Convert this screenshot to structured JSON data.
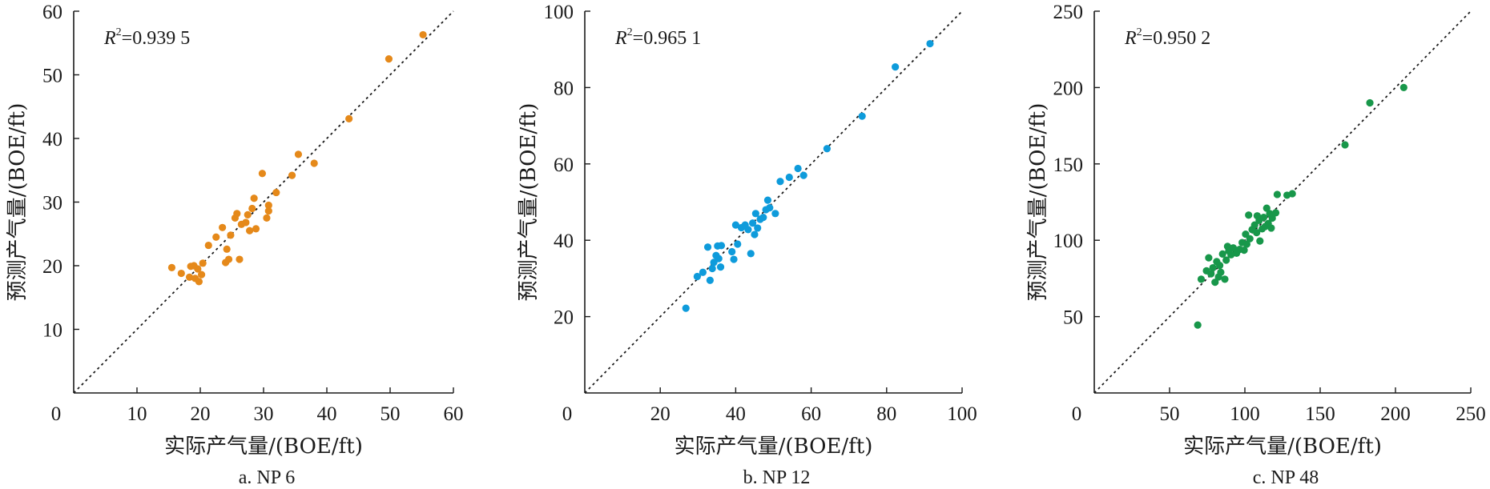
{
  "chart_data": [
    {
      "type": "scatter",
      "caption": "a. NP 6",
      "xlabel": "实际产气量/(BOE/ft)",
      "ylabel": "预测产气量/(BOE/ft)",
      "r2_label": "R",
      "r2_sup": "2",
      "r2_value": "=0.939 5",
      "xlim": [
        0,
        60
      ],
      "ylim": [
        0,
        60
      ],
      "xticks": [
        0,
        10,
        20,
        30,
        40,
        50,
        60
      ],
      "yticks": [
        10,
        20,
        30,
        40,
        50,
        60
      ],
      "origin_label": "0",
      "color": "#E5891A",
      "reference_line": "y=x",
      "points": [
        [
          15.5,
          19.7
        ],
        [
          17.0,
          18.8
        ],
        [
          18.3,
          18.2
        ],
        [
          18.5,
          19.9
        ],
        [
          19.2,
          18.0
        ],
        [
          19.6,
          19.5
        ],
        [
          19.8,
          17.5
        ],
        [
          20.2,
          18.6
        ],
        [
          20.4,
          20.4
        ],
        [
          19.0,
          20.0
        ],
        [
          21.3,
          23.2
        ],
        [
          22.5,
          24.5
        ],
        [
          23.5,
          26.0
        ],
        [
          24.0,
          20.5
        ],
        [
          24.2,
          22.6
        ],
        [
          24.5,
          21.0
        ],
        [
          24.8,
          24.8
        ],
        [
          25.5,
          27.5
        ],
        [
          25.8,
          28.2
        ],
        [
          26.2,
          21.0
        ],
        [
          26.5,
          26.5
        ],
        [
          27.2,
          26.8
        ],
        [
          27.5,
          28.0
        ],
        [
          27.8,
          25.5
        ],
        [
          28.2,
          29.0
        ],
        [
          28.5,
          30.6
        ],
        [
          28.8,
          25.8
        ],
        [
          29.8,
          34.5
        ],
        [
          30.5,
          27.5
        ],
        [
          30.8,
          29.5
        ],
        [
          30.8,
          28.6
        ],
        [
          32.0,
          31.5
        ],
        [
          34.5,
          34.2
        ],
        [
          35.5,
          37.5
        ],
        [
          38.0,
          36.1
        ],
        [
          43.5,
          43.1
        ],
        [
          49.8,
          52.5
        ],
        [
          55.2,
          56.3
        ]
      ]
    },
    {
      "type": "scatter",
      "caption": "b. NP 12",
      "xlabel": "实际产气量/(BOE/ft)",
      "ylabel": "预测产气量/(BOE/ft)",
      "r2_label": "R",
      "r2_sup": "2",
      "r2_value": "=0.965 1",
      "xlim": [
        0,
        100
      ],
      "ylim": [
        0,
        100
      ],
      "xticks": [
        20,
        40,
        60,
        80,
        100
      ],
      "yticks": [
        20,
        40,
        60,
        80,
        100
      ],
      "origin_label": "0",
      "color": "#0E9BDB",
      "reference_line": "y=x",
      "points": [
        [
          26.8,
          22.2
        ],
        [
          29.8,
          30.5
        ],
        [
          31.3,
          31.6
        ],
        [
          32.6,
          38.2
        ],
        [
          33.2,
          29.5
        ],
        [
          33.8,
          32.6
        ],
        [
          34.2,
          34.2
        ],
        [
          34.8,
          36.0
        ],
        [
          35.5,
          35.2
        ],
        [
          35.2,
          38.5
        ],
        [
          36.2,
          38.6
        ],
        [
          36.0,
          33.0
        ],
        [
          39.0,
          37.0
        ],
        [
          39.5,
          35.0
        ],
        [
          40.0,
          44.0
        ],
        [
          40.5,
          39.0
        ],
        [
          41.5,
          43.3
        ],
        [
          42.5,
          44.0
        ],
        [
          43.3,
          42.8
        ],
        [
          44.0,
          36.5
        ],
        [
          44.5,
          44.5
        ],
        [
          45.0,
          41.5
        ],
        [
          45.3,
          47.0
        ],
        [
          45.8,
          43.2
        ],
        [
          46.5,
          45.5
        ],
        [
          47.3,
          46.0
        ],
        [
          48.0,
          48.0
        ],
        [
          48.5,
          50.5
        ],
        [
          49.0,
          48.5
        ],
        [
          50.5,
          47.0
        ],
        [
          51.8,
          55.4
        ],
        [
          54.2,
          56.5
        ],
        [
          56.5,
          58.8
        ],
        [
          58.0,
          57.0
        ],
        [
          64.2,
          64.0
        ],
        [
          73.5,
          72.5
        ],
        [
          82.3,
          85.4
        ],
        [
          91.5,
          91.5
        ]
      ]
    },
    {
      "type": "scatter",
      "caption": "c. NP 48",
      "xlabel": "实际产气量/(BOE/ft)",
      "ylabel": "预测产气量/(BOE/ft)",
      "r2_label": "R",
      "r2_sup": "2",
      "r2_value": "=0.950 2",
      "xlim": [
        0,
        250
      ],
      "ylim": [
        0,
        250
      ],
      "xticks": [
        50,
        100,
        150,
        200,
        250
      ],
      "yticks": [
        50,
        100,
        150,
        200,
        250
      ],
      "origin_label": "0",
      "color": "#18974A",
      "reference_line": "y=x",
      "points": [
        [
          68.7,
          44.5
        ],
        [
          71.0,
          74.5
        ],
        [
          74.5,
          80.0
        ],
        [
          76.0,
          88.5
        ],
        [
          77.5,
          78.0
        ],
        [
          78.8,
          82.0
        ],
        [
          80.2,
          72.5
        ],
        [
          81.3,
          86.0
        ],
        [
          82.5,
          76.0
        ],
        [
          83.3,
          83.5
        ],
        [
          84.0,
          79.0
        ],
        [
          85.2,
          91.0
        ],
        [
          86.7,
          74.5
        ],
        [
          87.6,
          87.0
        ],
        [
          88.5,
          96.0
        ],
        [
          89.3,
          93.0
        ],
        [
          90.8,
          90.5
        ],
        [
          92.3,
          95.0
        ],
        [
          94.5,
          91.5
        ],
        [
          96.5,
          94.0
        ],
        [
          98.2,
          98.5
        ],
        [
          99.5,
          93.5
        ],
        [
          100.5,
          104.0
        ],
        [
          101.3,
          97.5
        ],
        [
          102.5,
          116.5
        ],
        [
          103.3,
          101.0
        ],
        [
          104.8,
          107.0
        ],
        [
          106.5,
          110.0
        ],
        [
          107.8,
          105.0
        ],
        [
          108.2,
          116.0
        ],
        [
          109.5,
          113.0
        ],
        [
          110.0,
          99.5
        ],
        [
          111.5,
          107.5
        ],
        [
          112.5,
          115.0
        ],
        [
          113.5,
          109.0
        ],
        [
          114.5,
          121.0
        ],
        [
          115.5,
          111.0
        ],
        [
          116.5,
          117.5
        ],
        [
          117.5,
          108.0
        ],
        [
          118.2,
          114.5
        ],
        [
          120.5,
          118.0
        ],
        [
          121.5,
          130.0
        ],
        [
          128.0,
          129.5
        ],
        [
          131.5,
          130.5
        ],
        [
          166.5,
          162.5
        ],
        [
          183.0,
          190.0
        ],
        [
          205.5,
          200.0
        ]
      ]
    }
  ]
}
